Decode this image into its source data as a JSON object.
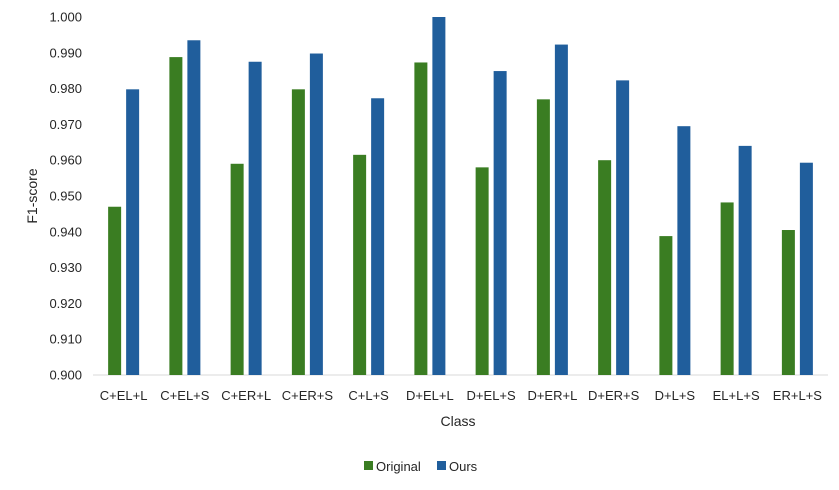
{
  "chart_data": {
    "type": "bar",
    "title": "",
    "xlabel": "Class",
    "ylabel": "F1-score",
    "ylim": [
      0.9,
      1.0
    ],
    "yticks": [
      "0.900",
      "0.910",
      "0.920",
      "0.930",
      "0.940",
      "0.950",
      "0.960",
      "0.970",
      "0.980",
      "0.990",
      "1.000"
    ],
    "ytick_values": [
      0.9,
      0.91,
      0.92,
      0.93,
      0.94,
      0.95,
      0.96,
      0.97,
      0.98,
      0.99,
      1.0
    ],
    "grid": false,
    "legend_position": "bottom",
    "categories": [
      "C+EL+L",
      "C+EL+S",
      "C+ER+L",
      "C+ER+S",
      "C+L+S",
      "D+EL+L",
      "D+EL+S",
      "D+ER+L",
      "D+ER+S",
      "D+L+S",
      "EL+L+S",
      "ER+L+S"
    ],
    "series": [
      {
        "name": "Original",
        "color": "#3a7d22",
        "values": [
          0.947,
          0.9888,
          0.959,
          0.9798,
          0.9615,
          0.9873,
          0.958,
          0.977,
          0.96,
          0.9388,
          0.9482,
          0.9405
        ]
      },
      {
        "name": "Ours",
        "color": "#205e9c",
        "values": [
          0.9798,
          0.9935,
          0.9875,
          0.9898,
          0.9773,
          1.0,
          0.9849,
          0.9923,
          0.9823,
          0.9695,
          0.964,
          0.9593
        ]
      }
    ]
  }
}
